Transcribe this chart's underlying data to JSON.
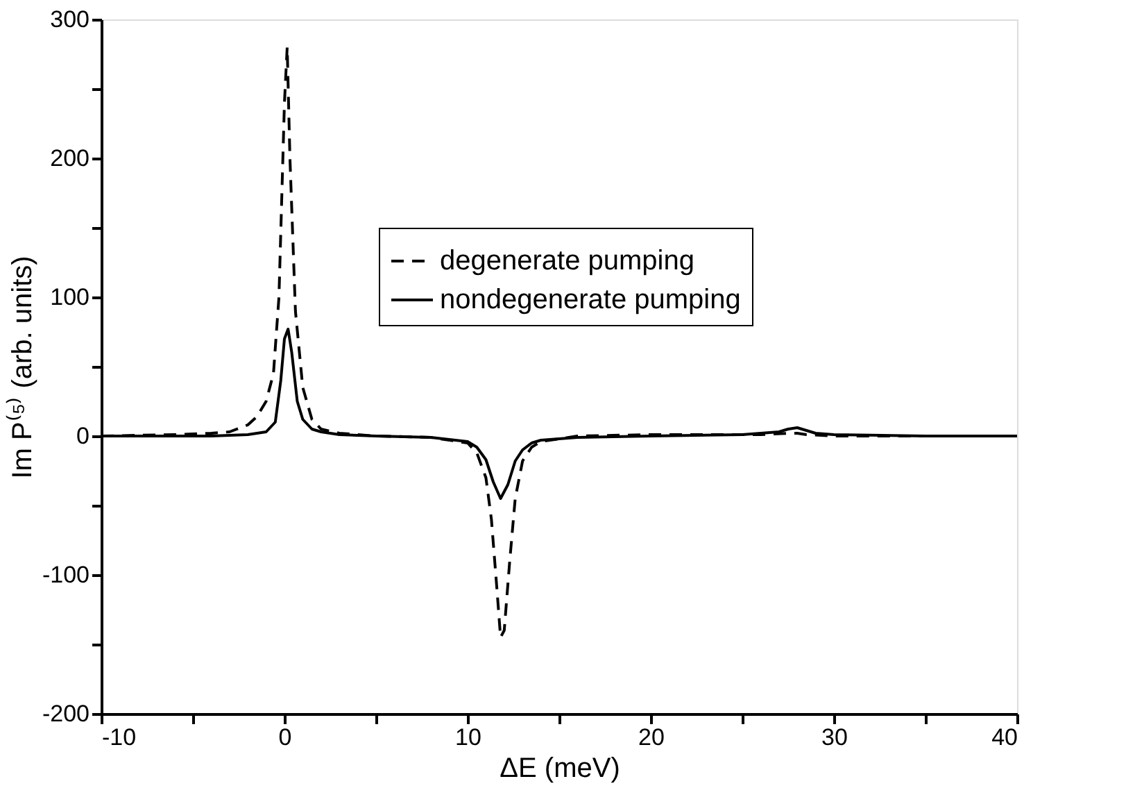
{
  "chart_data": {
    "type": "line",
    "xlabel": "ΔE (meV)",
    "ylabel": "Im P⁽⁵⁾ (arb. units)",
    "xlim": [
      -10,
      40
    ],
    "ylim": [
      -200,
      300
    ],
    "xticks": [
      -10,
      {
        "value": -5,
        "label": null
      },
      0,
      {
        "value": 5,
        "label": null
      },
      10,
      {
        "value": 15,
        "label": null
      },
      20,
      {
        "value": 25,
        "label": null
      },
      30,
      {
        "value": 35,
        "label": null
      },
      40
    ],
    "yticks": [
      -200,
      {
        "value": -150,
        "label": null
      },
      -100,
      {
        "value": -50,
        "label": null
      },
      0,
      {
        "value": 50,
        "label": null
      },
      100,
      {
        "value": 150,
        "label": null
      },
      200,
      {
        "value": 250,
        "label": null
      },
      300
    ],
    "grid": false,
    "legend": "top right",
    "marker": "none",
    "series": [
      {
        "name": "degenerate pumping",
        "color": "#000000",
        "line_style": "dashed",
        "x": [
          -10,
          -6,
          -4,
          -3,
          -2,
          -1.5,
          -1,
          -0.6,
          -0.3,
          0,
          0.15,
          0.3,
          0.6,
          1,
          1.5,
          2,
          3,
          5,
          8,
          10,
          10.5,
          11,
          11.3,
          11.6,
          11.8,
          12,
          12.3,
          12.6,
          13,
          13.5,
          14,
          16,
          20,
          26,
          27.5,
          28,
          28.5,
          30,
          35,
          40
        ],
        "values": [
          0,
          1,
          2,
          3,
          8,
          14,
          25,
          45,
          100,
          240,
          280,
          200,
          90,
          35,
          12,
          5,
          2,
          0,
          -1,
          -5,
          -12,
          -30,
          -60,
          -110,
          -145,
          -140,
          -90,
          -45,
          -18,
          -8,
          -4,
          0,
          1,
          1,
          2,
          2,
          1,
          0,
          0,
          0
        ]
      },
      {
        "name": "nondegenerate pumping",
        "color": "#000000",
        "line_style": "solid",
        "x": [
          -10,
          -4,
          -2,
          -1,
          -0.5,
          -0.2,
          0,
          0.2,
          0.4,
          0.7,
          1,
          1.5,
          2,
          3,
          5,
          8,
          10,
          10.5,
          11,
          11.4,
          11.8,
          12.2,
          12.6,
          13,
          13.5,
          14,
          16,
          20,
          25,
          27,
          27.5,
          28,
          28.5,
          29,
          30,
          35,
          40
        ],
        "values": [
          0,
          0,
          1,
          3,
          10,
          40,
          70,
          77,
          60,
          25,
          12,
          5,
          3,
          1,
          0,
          -1,
          -4,
          -8,
          -17,
          -33,
          -45,
          -35,
          -18,
          -10,
          -5,
          -3,
          -1,
          0,
          1,
          3,
          5,
          6,
          4,
          2,
          1,
          0,
          0
        ]
      }
    ]
  }
}
